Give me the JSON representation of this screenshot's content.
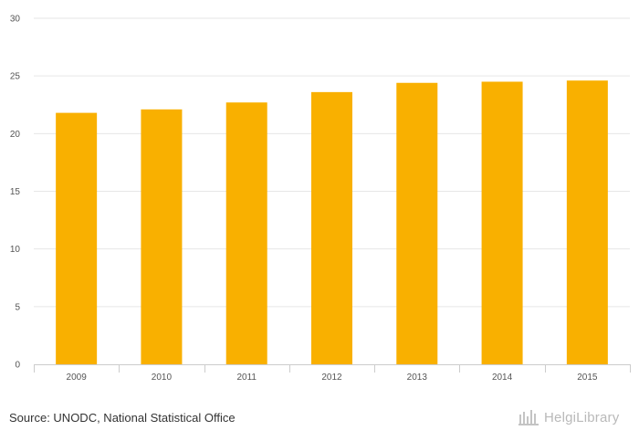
{
  "chart_data": {
    "type": "bar",
    "categories": [
      "2009",
      "2010",
      "2011",
      "2012",
      "2013",
      "2014",
      "2015"
    ],
    "values": [
      21.8,
      22.1,
      22.7,
      23.6,
      24.4,
      24.5,
      24.6
    ],
    "title": "",
    "xlabel": "",
    "ylabel": "",
    "ylim": [
      0,
      30
    ],
    "yticks": [
      "0",
      "5",
      "10",
      "15",
      "20",
      "25",
      "30"
    ],
    "grid": true,
    "bar_color": "#F9B000",
    "grid_color": "#e6e6e6",
    "axis_color": "#cccccc"
  },
  "footer": {
    "source": "Source: UNODC, National Statistical Office",
    "logo_text": "HelgiLibrary",
    "logo_icon": "helgi-library-logo-icon"
  }
}
